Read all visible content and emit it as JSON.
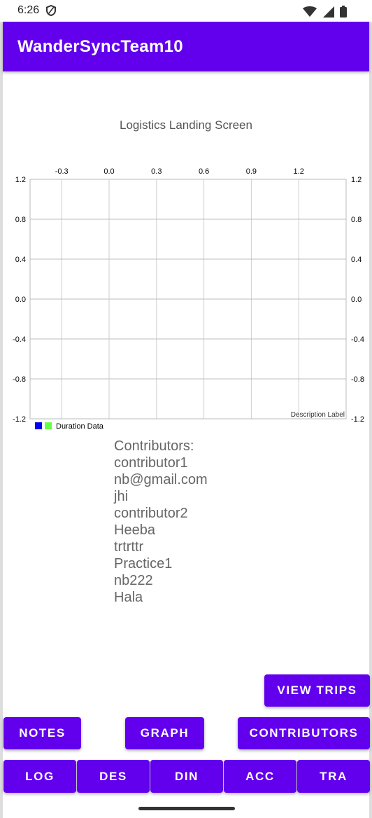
{
  "status": {
    "time": "6:26"
  },
  "app": {
    "title": "WanderSyncTeam10"
  },
  "screen": {
    "heading": "Logistics Landing Screen"
  },
  "chart_data": {
    "type": "bar",
    "x_ticks": [
      "-0.3",
      "0.0",
      "0.3",
      "0.6",
      "0.9",
      "1.2"
    ],
    "y_ticks": [
      "1.2",
      "0.8",
      "0.4",
      "0.0",
      "-0.4",
      "-0.8",
      "-1.2"
    ],
    "xlim": [
      -0.5,
      1.5
    ],
    "ylim": [
      -1.2,
      1.2
    ],
    "series": [
      {
        "name": "Duration Data",
        "values": [],
        "colors": [
          "#0000ee",
          "#66ff44"
        ]
      }
    ],
    "description": "Description Label",
    "legend_position": "bottom-left",
    "grid": true
  },
  "contributors": {
    "header": "Contributors:",
    "names": [
      "contributor1",
      "nb@gmail.com",
      "jhi",
      "contributor2",
      "Heeba",
      "trtrttr",
      "Practice1",
      "nb222",
      "Hala"
    ]
  },
  "buttons": {
    "view_trips": "VIEW TRIPS",
    "notes": "NOTES",
    "graph": "GRAPH",
    "contributors": "CONTRIBUTORS",
    "log": "LOG",
    "des": "DES",
    "din": "DIN",
    "acc": "ACC",
    "tra": "TRA"
  },
  "colors": {
    "primary": "#6200EE"
  }
}
